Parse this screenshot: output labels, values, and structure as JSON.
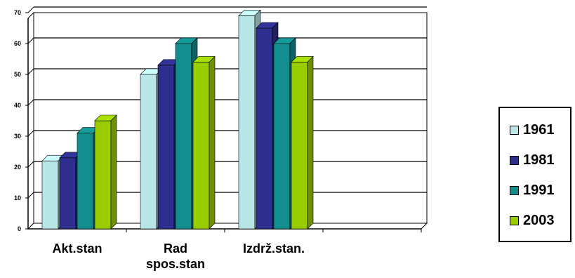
{
  "chart_data": {
    "type": "bar",
    "categories": [
      [
        "Akt.stan"
      ],
      [
        "Rad",
        "spos.stan"
      ],
      [
        "Izdrž.stan."
      ],
      [
        ""
      ]
    ],
    "series": [
      {
        "name": "1961",
        "values": [
          22,
          50,
          69,
          null
        ],
        "color": "#b9e6e6"
      },
      {
        "name": "1981",
        "values": [
          23,
          53,
          65,
          null
        ],
        "color": "#2e2e8e"
      },
      {
        "name": "1991",
        "values": [
          31,
          60,
          60,
          null
        ],
        "color": "#138e8e"
      },
      {
        "name": "2003",
        "values": [
          35,
          54,
          54,
          null
        ],
        "color": "#9acd00"
      }
    ],
    "yticks": [
      "0",
      "10",
      "20",
      "30",
      "40",
      "50",
      "60",
      "70"
    ],
    "ylim": [
      0,
      70
    ],
    "grid": true,
    "legend_position": "right"
  }
}
